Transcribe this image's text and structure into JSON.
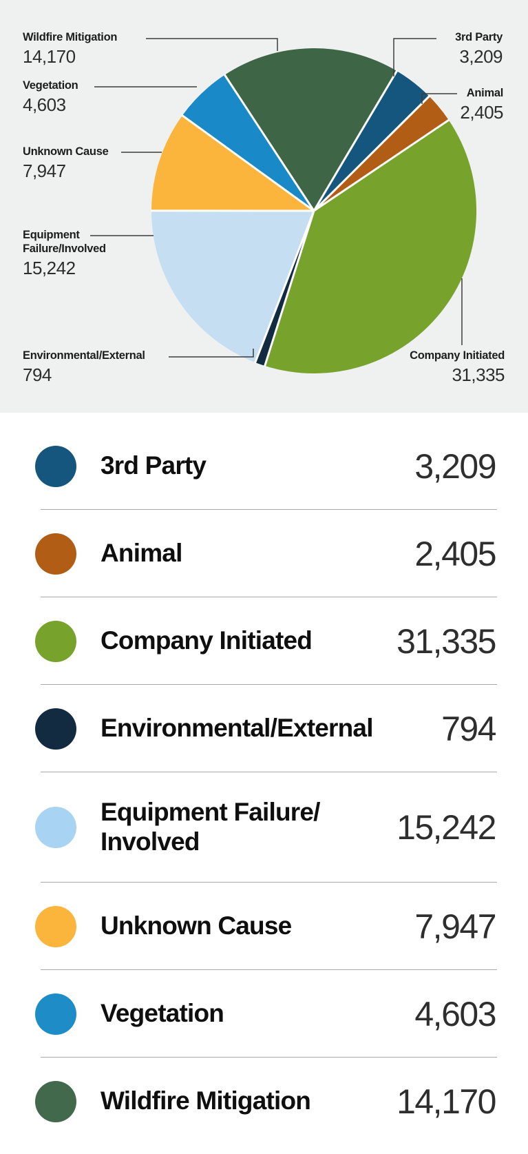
{
  "chart_data": {
    "type": "pie",
    "categories": [
      "3rd Party",
      "Animal",
      "Company Initiated",
      "Environmental/External",
      "Equipment Failure/Involved",
      "Unknown Cause",
      "Vegetation",
      "Wildfire Mitigation"
    ],
    "values": [
      3209,
      2405,
      31335,
      794,
      15242,
      7947,
      4603,
      14170
    ],
    "values_formatted": [
      "3,209",
      "2,405",
      "31,335",
      "794",
      "15,242",
      "7,947",
      "4,603",
      "14,170"
    ],
    "colors": [
      "#15567f",
      "#b25d16",
      "#77a32c",
      "#122b40",
      "#c6def1",
      "#fbb53d",
      "#1a89c8",
      "#3d6546"
    ],
    "total": 79705,
    "start_angle_deg": 30.7,
    "direction": "clockwise",
    "legend_position": "bottom",
    "background": "#eff1f1",
    "separator_color": "#ffffff"
  },
  "callouts": {
    "wildfire": {
      "label": "Wildfire Mitigation",
      "value": "14,170"
    },
    "third_party": {
      "label": "3rd Party",
      "value": "3,209"
    },
    "animal": {
      "label": "Animal",
      "value": "2,405"
    },
    "vegetation": {
      "label": "Vegetation",
      "value": "4,603"
    },
    "unknown": {
      "label": "Unknown Cause",
      "value": "7,947"
    },
    "equipment": {
      "label_lines": [
        "Equipment",
        "Failure/Involved"
      ],
      "value": "15,242"
    },
    "environmental": {
      "label": "Environmental/External",
      "value": "794"
    },
    "company": {
      "label": "Company Initiated",
      "value": "31,335"
    }
  },
  "legend": {
    "items": [
      {
        "label": "3rd Party",
        "value": "3,209",
        "color": "#15567f"
      },
      {
        "label": "Animal",
        "value": "2,405",
        "color": "#b25d16"
      },
      {
        "label": "Company Initiated",
        "value": "31,335",
        "color": "#77a32c"
      },
      {
        "label": "Environmental/External",
        "value": "794",
        "color": "#122b40"
      },
      {
        "label": "Equipment Failure/Involved",
        "label_lines": [
          "Equipment Failure/",
          "Involved"
        ],
        "value": "15,242",
        "color": "#a9d3f3"
      },
      {
        "label": "Unknown Cause",
        "value": "7,947",
        "color": "#fbb53d"
      },
      {
        "label": "Vegetation",
        "value": "4,603",
        "color": "#1d8cc7"
      },
      {
        "label": "Wildfire Mitigation",
        "value": "14,170",
        "color": "#42694b"
      }
    ]
  }
}
